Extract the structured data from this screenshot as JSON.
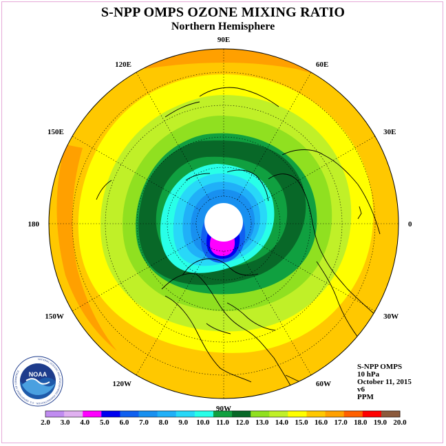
{
  "title": "S-NPP OMPS OZONE MIXING RATIO",
  "subtitle": "Northern Hemisphere",
  "info": {
    "product": "S-NPP OMPS",
    "level": "10 hPa",
    "date": "October 11, 2015",
    "version": "v6",
    "units": "PPM"
  },
  "longitude_labels": [
    {
      "text": "90E",
      "deg": 90
    },
    {
      "text": "60E",
      "deg": 60
    },
    {
      "text": "30E",
      "deg": 30
    },
    {
      "text": "0",
      "deg": 0
    },
    {
      "text": "30W",
      "deg": -30
    },
    {
      "text": "60W",
      "deg": -60
    },
    {
      "text": "90W",
      "deg": -90
    },
    {
      "text": "120W",
      "deg": -120
    },
    {
      "text": "150W",
      "deg": -150
    },
    {
      "text": "180",
      "deg": 180
    },
    {
      "text": "150E",
      "deg": 150
    },
    {
      "text": "120E",
      "deg": 120
    }
  ],
  "colorbar": {
    "labels": [
      "2.0",
      "3.0",
      "4.0",
      "5.0",
      "6.0",
      "7.0",
      "8.0",
      "9.0",
      "10.0",
      "11.0",
      "12.0",
      "13.0",
      "14.0",
      "15.0",
      "16.0",
      "17.0",
      "18.0",
      "19.0",
      "20.0"
    ],
    "colors": [
      "#c08cf0",
      "#e0b0f0",
      "#ff00ff",
      "#0000f0",
      "#1060f0",
      "#1890f0",
      "#20b0f8",
      "#28d8f8",
      "#28ffe8",
      "#10a040",
      "#086828",
      "#90e020",
      "#c0f028",
      "#ffff00",
      "#ffc800",
      "#ffa000",
      "#ff6000",
      "#ff0000",
      "#8c5a3c"
    ]
  },
  "logo": {
    "text": "NOAA",
    "ring_text": "NATIONAL OCEANIC AND ATMOSPHERIC ADMINISTRATION · U.S. DEPARTMENT OF COMMERCE"
  }
}
